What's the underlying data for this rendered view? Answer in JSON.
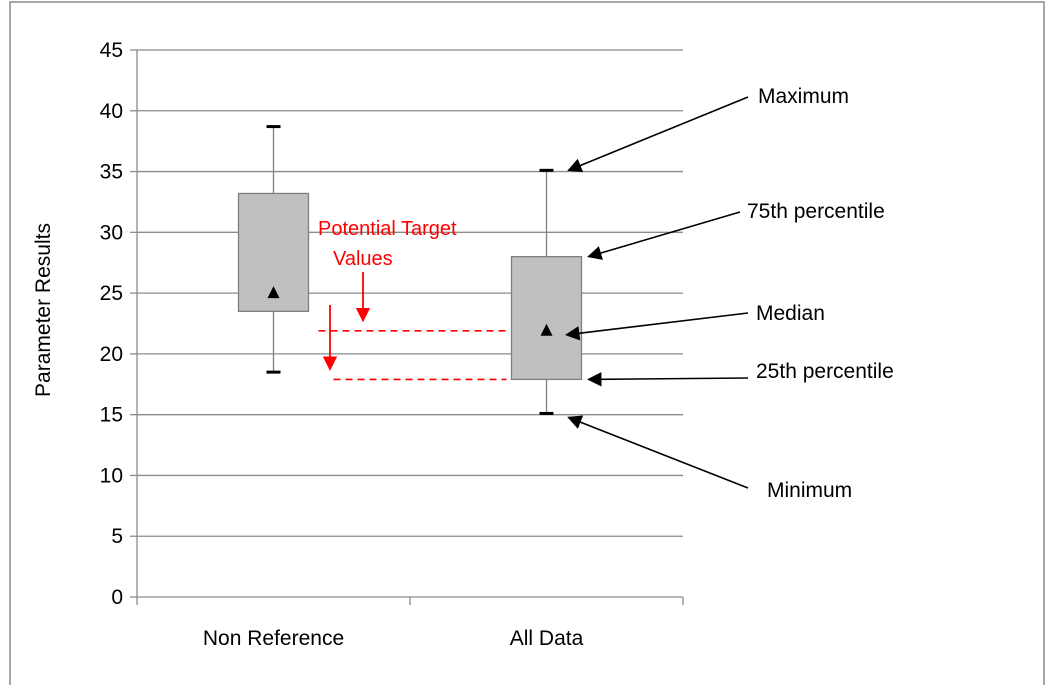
{
  "chart_data": {
    "type": "box",
    "ylabel": "Parameter Results",
    "ylim": [
      0,
      45
    ],
    "yticks": [
      0,
      5,
      10,
      15,
      20,
      25,
      30,
      35,
      40,
      45
    ],
    "grid": "horizontal",
    "categories": [
      "Non Reference",
      "All Data"
    ],
    "boxes": [
      {
        "category": "Non Reference",
        "min": 18.5,
        "q1": 23.5,
        "median": 25,
        "q3": 33.2,
        "max": 38.7
      },
      {
        "category": "All Data",
        "min": 15.1,
        "q1": 17.9,
        "median": 21.9,
        "q3": 28.0,
        "max": 35.1
      }
    ],
    "target_lines": [
      21.9,
      17.9
    ],
    "annotations": {
      "potential_target_line1": "Potential Target",
      "potential_target_line2": "Values",
      "maximum": "Maximum",
      "p75": "75th percentile",
      "median": "Median",
      "p25": "25th percentile",
      "minimum": "Minimum"
    },
    "colors": {
      "box_fill": "#c0c0c0",
      "box_stroke": "#7f7f7f",
      "annotation_red": "#ff0000",
      "grid": "#8c8c8c"
    }
  }
}
